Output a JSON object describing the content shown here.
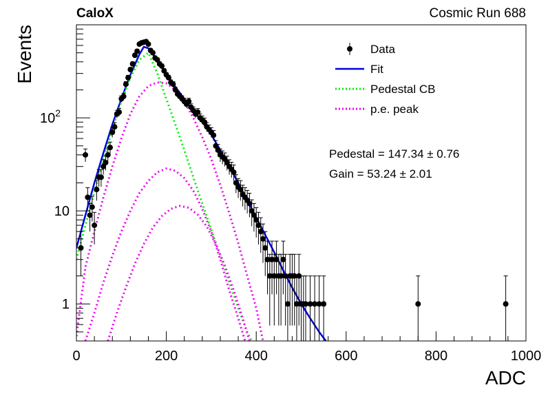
{
  "chart_data": {
    "type": "scatter",
    "experiment_label": "CaloX",
    "run_label": "Cosmic Run 688",
    "xlabel": "ADC",
    "ylabel": "Events",
    "xlim": [
      0,
      1000
    ],
    "ylim": [
      0.4,
      1000
    ],
    "yscale": "log",
    "grid": false,
    "legend_position": "top-right",
    "x_ticks": [
      0,
      200,
      400,
      600,
      800,
      1000
    ],
    "y_ticks": [
      {
        "value": 1,
        "label": "1"
      },
      {
        "value": 10,
        "label": "10"
      },
      {
        "value": 100,
        "label": "10",
        "sup": "2"
      }
    ],
    "legend": [
      {
        "name": "Data",
        "style": "marker"
      },
      {
        "name": "Fit",
        "style": "solid",
        "color": "#0000dd"
      },
      {
        "name": "Pedestal CB",
        "style": "dotted",
        "color": "#00ee00"
      },
      {
        "name": "p.e. peak",
        "style": "dotted",
        "color": "#ee00ee"
      }
    ],
    "fit_results": {
      "pedestal": "Pedestal = 147.34 ± 0.76",
      "gain": "Gain = 53.24 ± 2.01"
    },
    "series": [
      {
        "name": "Data",
        "color": "#000000",
        "points": [
          [
            10,
            4
          ],
          [
            20,
            40
          ],
          [
            25,
            14
          ],
          [
            30,
            9
          ],
          [
            35,
            11
          ],
          [
            40,
            7
          ],
          [
            45,
            17
          ],
          [
            50,
            23
          ],
          [
            55,
            23
          ],
          [
            60,
            30
          ],
          [
            65,
            33
          ],
          [
            70,
            40
          ],
          [
            75,
            48
          ],
          [
            80,
            70
          ],
          [
            85,
            80
          ],
          [
            90,
            110
          ],
          [
            95,
            115
          ],
          [
            100,
            160
          ],
          [
            105,
            170
          ],
          [
            110,
            230
          ],
          [
            115,
            270
          ],
          [
            120,
            330
          ],
          [
            125,
            380
          ],
          [
            130,
            470
          ],
          [
            135,
            520
          ],
          [
            140,
            620
          ],
          [
            145,
            640
          ],
          [
            150,
            650
          ],
          [
            155,
            660
          ],
          [
            160,
            620
          ],
          [
            165,
            530
          ],
          [
            170,
            500
          ],
          [
            175,
            440
          ],
          [
            180,
            420
          ],
          [
            185,
            380
          ],
          [
            190,
            360
          ],
          [
            195,
            320
          ],
          [
            200,
            290
          ],
          [
            205,
            270
          ],
          [
            210,
            240
          ],
          [
            215,
            230
          ],
          [
            220,
            200
          ],
          [
            225,
            180
          ],
          [
            230,
            170
          ],
          [
            235,
            160
          ],
          [
            240,
            150
          ],
          [
            245,
            140
          ],
          [
            250,
            150
          ],
          [
            255,
            130
          ],
          [
            260,
            120
          ],
          [
            265,
            110
          ],
          [
            270,
            115
          ],
          [
            275,
            100
          ],
          [
            280,
            95
          ],
          [
            285,
            90
          ],
          [
            290,
            80
          ],
          [
            295,
            75
          ],
          [
            300,
            70
          ],
          [
            305,
            65
          ],
          [
            310,
            50
          ],
          [
            315,
            45
          ],
          [
            320,
            40
          ],
          [
            325,
            38
          ],
          [
            330,
            36
          ],
          [
            335,
            33
          ],
          [
            340,
            30
          ],
          [
            345,
            28
          ],
          [
            350,
            26
          ],
          [
            355,
            20
          ],
          [
            360,
            18
          ],
          [
            365,
            17
          ],
          [
            370,
            15
          ],
          [
            375,
            14
          ],
          [
            380,
            13
          ],
          [
            385,
            12
          ],
          [
            390,
            10
          ],
          [
            395,
            9
          ],
          [
            400,
            8
          ],
          [
            405,
            7
          ],
          [
            410,
            6
          ],
          [
            415,
            5
          ],
          [
            420,
            4
          ],
          [
            425,
            3
          ],
          [
            430,
            2
          ],
          [
            435,
            3
          ],
          [
            440,
            2
          ],
          [
            445,
            3
          ],
          [
            450,
            2
          ],
          [
            455,
            2
          ],
          [
            460,
            3
          ],
          [
            465,
            2
          ],
          [
            470,
            1
          ],
          [
            475,
            2
          ],
          [
            480,
            2
          ],
          [
            485,
            2
          ],
          [
            490,
            1
          ],
          [
            495,
            2
          ],
          [
            500,
            1
          ],
          [
            505,
            1
          ],
          [
            510,
            1
          ],
          [
            520,
            1
          ],
          [
            530,
            1
          ],
          [
            540,
            1
          ],
          [
            550,
            1
          ],
          [
            760,
            1
          ],
          [
            955,
            1
          ]
        ]
      },
      {
        "name": "Fit",
        "color": "#0000dd",
        "points": [
          [
            0,
            4
          ],
          [
            20,
            9
          ],
          [
            40,
            20
          ],
          [
            60,
            42
          ],
          [
            80,
            85
          ],
          [
            100,
            160
          ],
          [
            120,
            290
          ],
          [
            140,
            480
          ],
          [
            150,
            580
          ],
          [
            160,
            560
          ],
          [
            180,
            420
          ],
          [
            200,
            300
          ],
          [
            220,
            215
          ],
          [
            240,
            160
          ],
          [
            260,
            120
          ],
          [
            280,
            90
          ],
          [
            300,
            66
          ],
          [
            320,
            45
          ],
          [
            340,
            30
          ],
          [
            360,
            20
          ],
          [
            380,
            13
          ],
          [
            400,
            8.5
          ],
          [
            420,
            5.5
          ],
          [
            440,
            3.6
          ],
          [
            460,
            2.3
          ],
          [
            480,
            1.5
          ],
          [
            500,
            1
          ],
          [
            520,
            0.7
          ],
          [
            540,
            0.5
          ],
          [
            555,
            0.4
          ]
        ]
      },
      {
        "name": "Pedestal CB",
        "color": "#00ee00",
        "points": [
          [
            0,
            3
          ],
          [
            20,
            7
          ],
          [
            40,
            16
          ],
          [
            60,
            35
          ],
          [
            80,
            75
          ],
          [
            100,
            150
          ],
          [
            120,
            270
          ],
          [
            140,
            420
          ],
          [
            160,
            500
          ],
          [
            180,
            300
          ],
          [
            200,
            160
          ],
          [
            220,
            85
          ],
          [
            240,
            45
          ],
          [
            260,
            23
          ],
          [
            280,
            12
          ],
          [
            300,
            6.3
          ],
          [
            320,
            3.3
          ],
          [
            340,
            1.7
          ],
          [
            360,
            0.9
          ],
          [
            380,
            0.5
          ],
          [
            390,
            0.4
          ]
        ]
      },
      {
        "name": "p.e. peak",
        "color": "#ee00ee",
        "points": [
          [
            0,
            0.45
          ],
          [
            20,
            2.5
          ],
          [
            40,
            6
          ],
          [
            60,
            14
          ],
          [
            80,
            30
          ],
          [
            100,
            60
          ],
          [
            120,
            110
          ],
          [
            140,
            170
          ],
          [
            160,
            220
          ],
          [
            180,
            240
          ],
          [
            200,
            235
          ],
          [
            220,
            200
          ],
          [
            240,
            150
          ],
          [
            260,
            100
          ],
          [
            280,
            62
          ],
          [
            300,
            36
          ],
          [
            320,
            19
          ],
          [
            340,
            9.5
          ],
          [
            360,
            4.5
          ],
          [
            380,
            2
          ],
          [
            400,
            0.9
          ],
          [
            415,
            0.4
          ]
        ]
      },
      {
        "name": "p.e. peak",
        "color": "#ee00ee",
        "points": [
          [
            20,
            0.4
          ],
          [
            40,
            0.8
          ],
          [
            60,
            1.7
          ],
          [
            80,
            3.3
          ],
          [
            100,
            6
          ],
          [
            120,
            10
          ],
          [
            140,
            15.5
          ],
          [
            160,
            21
          ],
          [
            180,
            26
          ],
          [
            200,
            28.5
          ],
          [
            220,
            27
          ],
          [
            240,
            22.5
          ],
          [
            260,
            16.5
          ],
          [
            280,
            10.5
          ],
          [
            300,
            6
          ],
          [
            320,
            3
          ],
          [
            340,
            1.4
          ],
          [
            360,
            0.7
          ],
          [
            375,
            0.4
          ]
        ]
      },
      {
        "name": "p.e. peak",
        "color": "#ee00ee",
        "points": [
          [
            70,
            0.4
          ],
          [
            90,
            0.8
          ],
          [
            110,
            1.5
          ],
          [
            130,
            2.7
          ],
          [
            150,
            4.4
          ],
          [
            170,
            6.6
          ],
          [
            190,
            8.8
          ],
          [
            210,
            10.5
          ],
          [
            230,
            11.3
          ],
          [
            250,
            10.8
          ],
          [
            270,
            9.1
          ],
          [
            290,
            6.8
          ],
          [
            310,
            4.4
          ],
          [
            330,
            2.6
          ],
          [
            350,
            1.4
          ],
          [
            370,
            0.7
          ],
          [
            385,
            0.4
          ]
        ]
      }
    ]
  }
}
